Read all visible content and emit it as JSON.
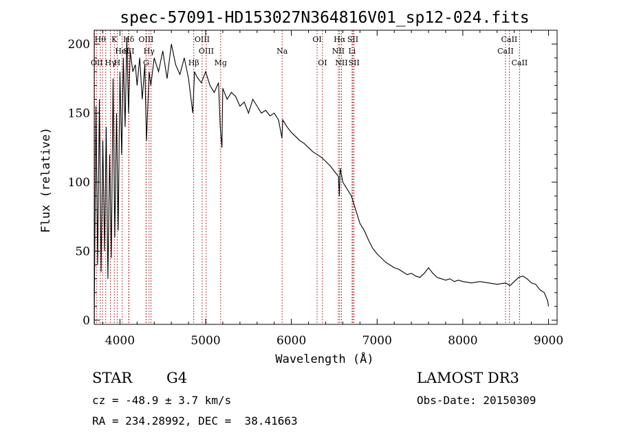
{
  "chart_data": {
    "type": "line",
    "title": "spec-57091-HD153027N364816V01_sp12-024.fits",
    "xlabel": "Wavelength (Å)",
    "ylabel": "Flux (relative)",
    "xlim": [
      3700,
      9100
    ],
    "ylim": [
      -3,
      210
    ],
    "xticks": [
      4000,
      5000,
      6000,
      7000,
      8000,
      9000
    ],
    "yticks": [
      0,
      50,
      100,
      150,
      200
    ],
    "grid": false,
    "series": [
      {
        "name": "Flux",
        "x": [
          3700,
          3720,
          3740,
          3760,
          3780,
          3800,
          3820,
          3840,
          3860,
          3880,
          3900,
          3920,
          3940,
          3960,
          3980,
          4000,
          4020,
          4040,
          4060,
          4080,
          4100,
          4120,
          4150,
          4180,
          4200,
          4230,
          4260,
          4290,
          4310,
          4340,
          4360,
          4400,
          4450,
          4500,
          4550,
          4600,
          4650,
          4700,
          4750,
          4800,
          4850,
          4870,
          4900,
          4950,
          5000,
          5050,
          5100,
          5150,
          5170,
          5190,
          5200,
          5250,
          5300,
          5350,
          5400,
          5450,
          5500,
          5550,
          5600,
          5650,
          5700,
          5750,
          5800,
          5850,
          5890,
          5900,
          5950,
          6000,
          6050,
          6100,
          6150,
          6200,
          6250,
          6300,
          6350,
          6400,
          6450,
          6500,
          6550,
          6560,
          6570,
          6600,
          6650,
          6700,
          6750,
          6800,
          6850,
          6900,
          6950,
          7000,
          7050,
          7100,
          7150,
          7200,
          7250,
          7300,
          7350,
          7400,
          7450,
          7500,
          7550,
          7600,
          7650,
          7700,
          7750,
          7800,
          7850,
          7900,
          7950,
          8000,
          8100,
          8200,
          8300,
          8400,
          8500,
          8550,
          8600,
          8650,
          8700,
          8750,
          8800,
          8850,
          8900,
          8950,
          8990,
          9000
        ],
        "values": [
          0,
          155,
          40,
          160,
          35,
          130,
          50,
          140,
          30,
          120,
          45,
          175,
          60,
          150,
          65,
          180,
          120,
          190,
          140,
          205,
          150,
          195,
          180,
          185,
          170,
          190,
          160,
          185,
          130,
          180,
          170,
          190,
          180,
          195,
          175,
          200,
          185,
          178,
          190,
          175,
          150,
          180,
          176,
          172,
          180,
          170,
          165,
          172,
          140,
          125,
          168,
          160,
          165,
          162,
          155,
          158,
          150,
          160,
          155,
          150,
          152,
          148,
          150,
          145,
          132,
          145,
          140,
          136,
          133,
          130,
          128,
          125,
          122,
          120,
          118,
          115,
          112,
          108,
          104,
          90,
          110,
          100,
          95,
          90,
          80,
          70,
          65,
          58,
          52,
          48,
          45,
          42,
          40,
          38,
          37,
          35,
          33,
          34,
          32,
          31,
          34,
          38,
          34,
          31,
          30,
          29,
          30,
          28,
          29,
          28,
          27,
          28,
          27,
          26,
          27,
          25,
          28,
          31,
          32,
          30,
          27,
          26,
          22,
          20,
          14,
          10
        ]
      }
    ],
    "line_markers": [
      {
        "wl": 3705,
        "label": "",
        "row": 0
      },
      {
        "wl": 3730,
        "label": "OII",
        "row": 2
      },
      {
        "wl": 3770,
        "label": "Hθ",
        "row": 0
      },
      {
        "wl": 3797,
        "label": "",
        "row": 0
      },
      {
        "wl": 3835,
        "label": "",
        "row": 0
      },
      {
        "wl": 3889,
        "label": "Hγ",
        "row": 2
      },
      {
        "wl": 3934,
        "label": "K",
        "row": 0
      },
      {
        "wl": 3968,
        "label": "H",
        "row": 2
      },
      {
        "wl": 4026,
        "label": "HeI",
        "row": 1
      },
      {
        "wl": 4102,
        "label": "Hδ",
        "row": 0
      },
      {
        "wl": 4104,
        "label": "SII",
        "row": 1
      },
      {
        "wl": 4305,
        "label": "OIII",
        "row": 0
      },
      {
        "wl": 4305,
        "label": "G",
        "row": 2
      },
      {
        "wl": 4340,
        "label": "Hγ",
        "row": 1
      },
      {
        "wl": 4363,
        "label": "",
        "row": 0
      },
      {
        "wl": 4861,
        "label": "Hβ",
        "row": 2
      },
      {
        "wl": 4959,
        "label": "OIII",
        "row": 0
      },
      {
        "wl": 5007,
        "label": "OIII",
        "row": 1
      },
      {
        "wl": 5175,
        "label": "Mg",
        "row": 2
      },
      {
        "wl": 5892,
        "label": "Na",
        "row": 1
      },
      {
        "wl": 6300,
        "label": "OI",
        "row": 0
      },
      {
        "wl": 6363,
        "label": "OI",
        "row": 2
      },
      {
        "wl": 6548,
        "label": "NII",
        "row": 1
      },
      {
        "wl": 6563,
        "label": "Hα",
        "row": 0
      },
      {
        "wl": 6584,
        "label": "NII",
        "row": 2
      },
      {
        "wl": 6708,
        "label": "Li",
        "row": 1
      },
      {
        "wl": 6717,
        "label": "SII",
        "row": 0
      },
      {
        "wl": 6731,
        "label": "SII",
        "row": 2
      },
      {
        "wl": 8498,
        "label": "CaII",
        "row": 1
      },
      {
        "wl": 8542,
        "label": "CaII",
        "row": 0
      },
      {
        "wl": 8662,
        "label": "CaII",
        "row": 2
      }
    ]
  },
  "info": {
    "class": "STAR",
    "subclass": "G4",
    "survey": "LAMOST DR3",
    "cz": "cz = -48.9 ± 3.7 km/s",
    "obs_date": "Obs-Date: 20150309",
    "radec": "RA = 234.28992, DEC =  38.41663"
  }
}
